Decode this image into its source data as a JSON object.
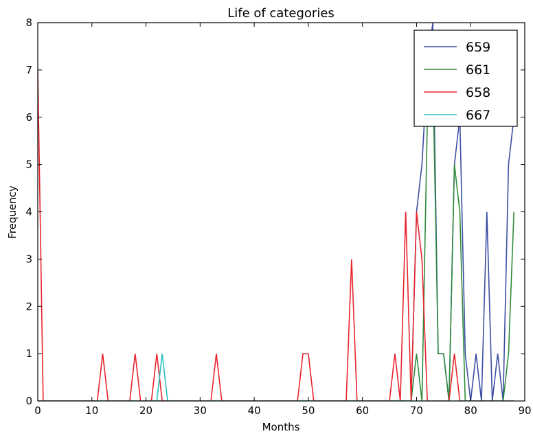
{
  "chart_data": {
    "type": "line",
    "title": "Life of categories",
    "xlabel": "Months",
    "ylabel": "Frequency",
    "xlim": [
      0,
      90
    ],
    "ylim": [
      0,
      8
    ],
    "xticks": [
      0,
      10,
      20,
      30,
      40,
      50,
      60,
      70,
      80,
      90
    ],
    "yticks": [
      0,
      1,
      2,
      3,
      4,
      5,
      6,
      7,
      8
    ],
    "grid": false,
    "legend_position": "top-right",
    "series": [
      {
        "name": "659",
        "color": "#3b4ea3",
        "x": [
          69,
          70,
          71,
          72,
          73,
          74,
          75,
          76,
          77,
          78,
          79,
          80,
          81,
          82,
          83,
          84,
          85,
          86,
          87,
          88
        ],
        "y": [
          0,
          4,
          5,
          7,
          8,
          1,
          1,
          0,
          5,
          6,
          1,
          0,
          1,
          0,
          4,
          0,
          1,
          0,
          5,
          6
        ]
      },
      {
        "name": "661",
        "color": "#2e8b3a",
        "x": [
          69,
          70,
          71,
          72,
          73,
          74,
          75,
          76,
          77,
          78,
          79,
          80,
          81,
          82,
          83,
          84,
          85,
          86,
          87,
          88
        ],
        "y": [
          0,
          1,
          0,
          6,
          7,
          1,
          1,
          0,
          5,
          4,
          0,
          0,
          0,
          0,
          0,
          0,
          0,
          0,
          1,
          4
        ]
      },
      {
        "name": "658",
        "color": "#e8232c",
        "x": [
          0,
          1,
          11,
          12,
          13,
          17,
          18,
          19,
          21,
          22,
          23,
          32,
          33,
          34,
          48,
          49,
          50,
          51,
          57,
          58,
          59,
          65,
          66,
          67,
          68,
          69,
          70,
          71,
          72,
          76,
          77,
          78
        ],
        "y": [
          7,
          0,
          0,
          1,
          0,
          0,
          1,
          0,
          0,
          1,
          0,
          0,
          1,
          0,
          0,
          1,
          1,
          0,
          0,
          3,
          0,
          0,
          1,
          0,
          4,
          0,
          4,
          3,
          0,
          0,
          1,
          0
        ]
      },
      {
        "name": "667",
        "color": "#2bbfbf",
        "x": [
          22,
          23,
          24
        ],
        "y": [
          0,
          1,
          0
        ]
      }
    ]
  }
}
